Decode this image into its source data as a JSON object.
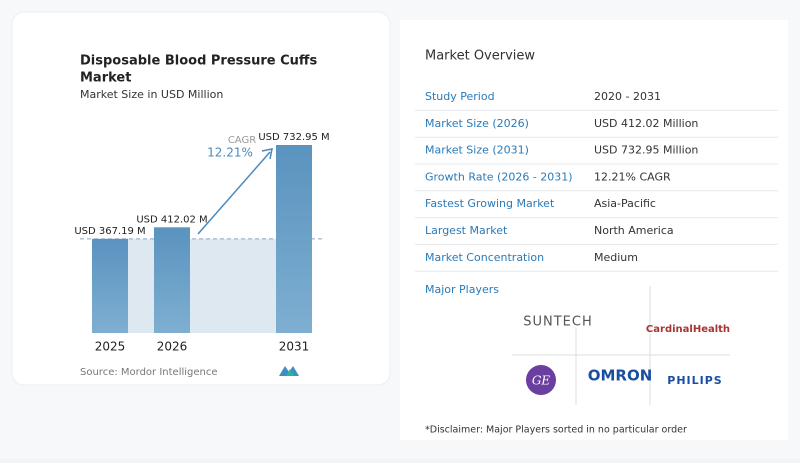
{
  "chart_data": {
    "type": "bar",
    "title": "Disposable Blood Pressure Cuffs Market",
    "subtitle": "Market Size in USD Million",
    "categories": [
      "2025",
      "2026",
      "2031"
    ],
    "values": [
      367.19,
      412.02,
      732.95
    ],
    "value_labels": [
      "USD 367.19 M",
      "USD 412.02 M",
      "USD 732.95 M"
    ],
    "color": "#5f97c2",
    "annotations": [
      "CAGR",
      "12.21%"
    ],
    "source": "Source: Mordor Intelligence"
  },
  "overview": {
    "title": "Market Overview",
    "rows": [
      [
        "Study Period",
        "2020 - 2031"
      ],
      [
        "Market Size (2026)",
        "USD 412.02 Million"
      ],
      [
        "Market Size (2031)",
        "USD 732.95 Million"
      ],
      [
        "Growth Rate (2026 - 2031)",
        "12.21% CAGR"
      ],
      [
        "Fastest Growing Market",
        "Asia-Pacific"
      ],
      [
        "Largest Market",
        "North America"
      ],
      [
        "Market Concentration",
        "Medium"
      ]
    ]
  },
  "players": {
    "title": "Major Players",
    "names": [
      "SUNTECH",
      "CardinalHealth",
      "GE",
      "OMRON",
      "PHILIPS"
    ]
  },
  "disclaimer": "*Disclaimer: Major Players sorted in no particular order"
}
